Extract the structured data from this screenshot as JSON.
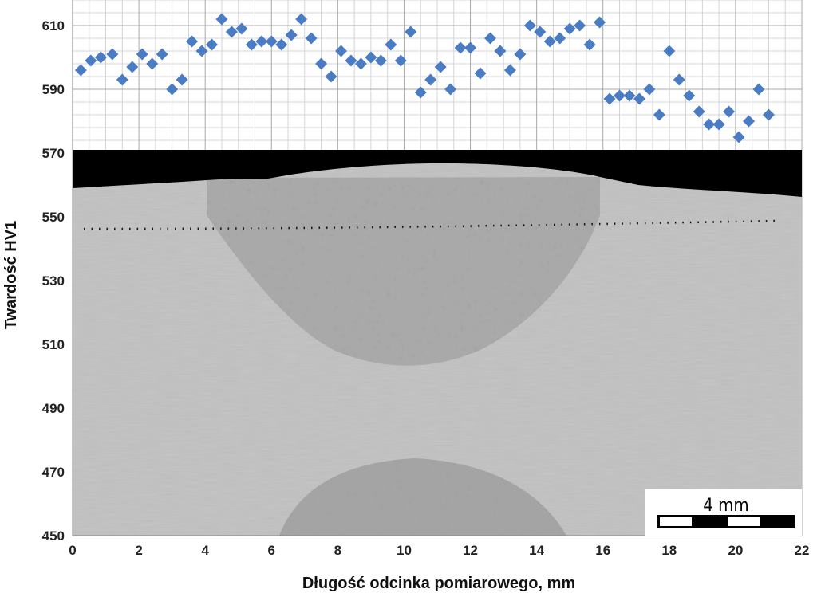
{
  "chart_data": {
    "type": "scatter",
    "title": "",
    "xlabel": "Długość odcinka pomiarowego, mm",
    "ylabel": "Twardość HV1",
    "xlim": [
      0,
      22
    ],
    "ylim": [
      450,
      618
    ],
    "x_ticks": [
      "0",
      "2",
      "4",
      "6",
      "8",
      "10",
      "12",
      "14",
      "16",
      "18",
      "20",
      "22"
    ],
    "y_ticks": [
      "450",
      "470",
      "490",
      "510",
      "530",
      "550",
      "570",
      "590",
      "610"
    ],
    "grid": true,
    "marker": "diamond",
    "marker_color": "#4a7cc4",
    "background": "micrograph",
    "scale_bar_label": "4 mm",
    "series": [
      {
        "x": [
          0.25,
          0.55,
          0.85,
          1.2,
          1.5,
          1.8,
          2.1,
          2.4,
          2.7,
          3.0,
          3.3,
          3.6,
          3.9,
          4.2,
          4.5,
          4.8,
          5.1,
          5.4,
          5.7,
          6.0,
          6.3,
          6.6,
          6.9,
          7.2,
          7.5,
          7.8,
          8.1,
          8.4,
          8.7,
          9.0,
          9.3,
          9.6,
          9.9,
          10.2,
          10.5,
          10.8,
          11.1,
          11.4,
          11.7,
          12.0,
          12.3,
          12.6,
          12.9,
          13.2,
          13.5,
          13.8,
          14.1,
          14.4,
          14.7,
          15.0,
          15.3,
          15.6,
          15.9,
          16.2,
          16.5,
          16.8,
          17.1,
          17.4,
          17.7,
          18.0,
          18.3,
          18.6,
          18.9,
          19.2,
          19.5,
          19.8,
          20.1,
          20.4,
          20.7,
          21.0
        ],
        "y": [
          596,
          599,
          600,
          601,
          593,
          597,
          601,
          598,
          601,
          590,
          593,
          605,
          602,
          604,
          612,
          608,
          609,
          604,
          605,
          605,
          604,
          607,
          612,
          606,
          598,
          594,
          602,
          599,
          598,
          600,
          599,
          604,
          599,
          608,
          589,
          593,
          597,
          590,
          603,
          603,
          595,
          606,
          602,
          596,
          601,
          610,
          608,
          605,
          606,
          609,
          610,
          604,
          611,
          587,
          588,
          588,
          587,
          590,
          582,
          602,
          593,
          588,
          583,
          579,
          579,
          583,
          575,
          580,
          590,
          582
        ]
      }
    ]
  }
}
